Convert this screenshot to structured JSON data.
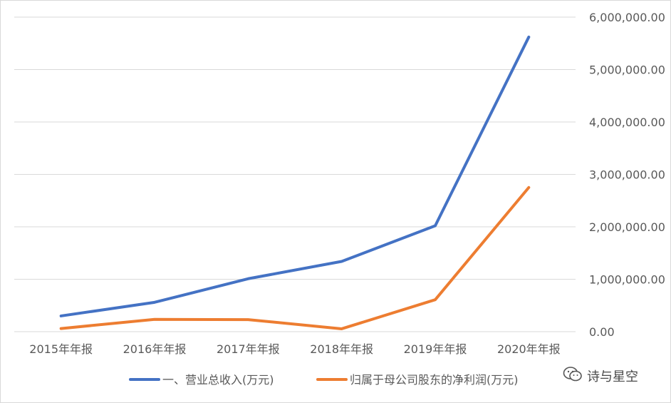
{
  "chart_data": {
    "type": "line",
    "categories": [
      "2015年年报",
      "2016年年报",
      "2017年年报",
      "2018年年报",
      "2019年年报",
      "2020年年报"
    ],
    "series": [
      {
        "name": "一、营业总收入(万元)",
        "color": "#4472c4",
        "values": [
          300000,
          560000,
          1010000,
          1340000,
          2020000,
          5620000
        ]
      },
      {
        "name": "归属于母公司股东的净利润(万元)",
        "color": "#ed7d31",
        "values": [
          60000,
          235000,
          230000,
          55000,
          610000,
          2750000
        ]
      }
    ],
    "ylim": [
      0,
      6000000
    ],
    "yticks": [
      "0.00",
      "1,000,000.00",
      "2,000,000.00",
      "3,000,000.00",
      "4,000,000.00",
      "5,000,000.00",
      "6,000,000.00"
    ],
    "y_axis_side": "right",
    "grid": true,
    "legend_position": "bottom"
  },
  "watermark": {
    "text": "诗与星空",
    "icon": "wechat-icon"
  }
}
